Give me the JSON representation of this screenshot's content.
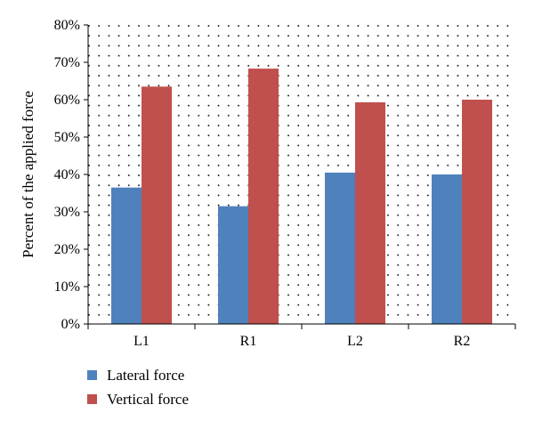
{
  "chart_data": {
    "type": "bar",
    "categories": [
      "L1",
      "R1",
      "L2",
      "R2"
    ],
    "series": [
      {
        "name": "Lateral force",
        "color": "#4F81BD",
        "values": [
          36.5,
          31.5,
          40.5,
          40.0
        ]
      },
      {
        "name": "Vertical force",
        "color": "#C0504D",
        "values": [
          63.5,
          68.3,
          59.3,
          60.0
        ]
      }
    ],
    "title": "",
    "xlabel": "",
    "ylabel": "Percent of the applied force",
    "ylim": [
      0,
      80
    ],
    "yticks": [
      "0%",
      "10%",
      "20%",
      "30%",
      "40%",
      "50%",
      "60%",
      "70%",
      "80%"
    ],
    "grid": "dotted",
    "legend_position": "bottom-left"
  }
}
